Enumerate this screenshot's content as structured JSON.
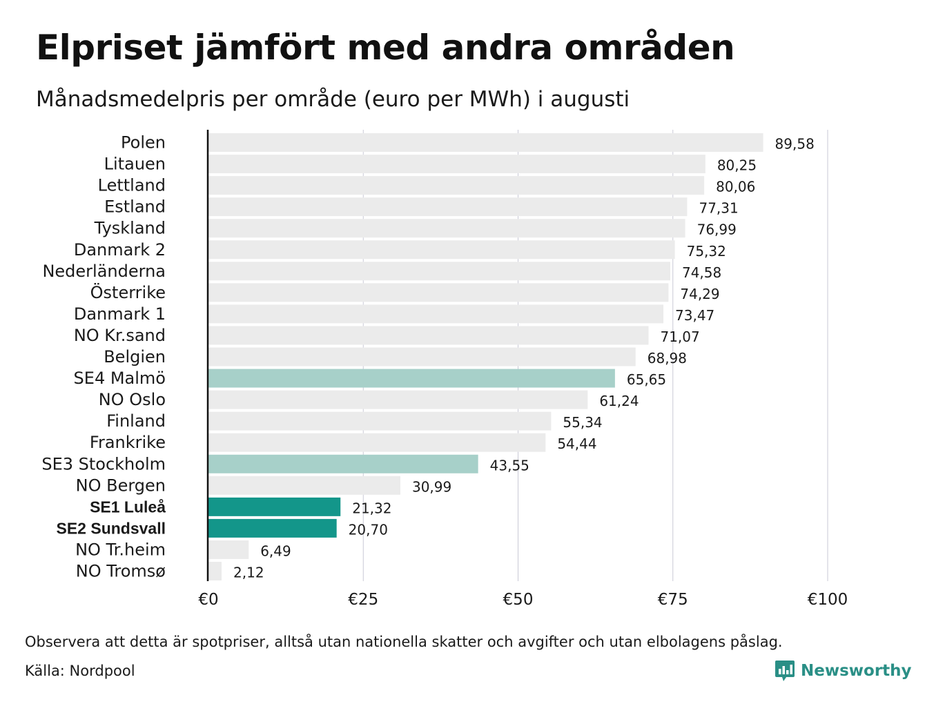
{
  "title": "Elpriset jämfört med andra områden",
  "subtitle": "Månadsmedelpris per område (euro per MWh) i augusti",
  "footer": {
    "note": "Observera att detta är spotpriser, alltså utan nationella skatter och avgifter och utan elbolagens påslag.",
    "source": "Källa: Nordpool"
  },
  "brand": {
    "name": "Newsworthy",
    "icon": "newsworthy-logo-icon",
    "color": "#2a8f86"
  },
  "chart_data": {
    "type": "bar",
    "orientation": "horizontal",
    "xlim": [
      0,
      100
    ],
    "x_ticks": [
      0,
      25,
      50,
      75,
      100
    ],
    "x_tick_labels": [
      "€0",
      "€25",
      "€50",
      "€75",
      "€100"
    ],
    "grid": true,
    "colors": {
      "default": "#ebebeb",
      "highlight_light": "#a7d0c9",
      "highlight_dark": "#13968a"
    },
    "categories": [
      "Polen",
      "Litauen",
      "Lettland",
      "Estland",
      "Tyskland",
      "Danmark  2",
      "Nederländerna",
      "Österrike",
      "Danmark  1",
      "NO Kr.sand",
      "Belgien",
      "SE4  Malmö",
      "NO Oslo",
      "Finland",
      "Frankrike",
      "SE3  Stockholm",
      "NO Bergen",
      "SE1 Luleå",
      "SE2 Sundsvall",
      "NO Tr.heim",
      "NO Tromsø"
    ],
    "values": [
      89.58,
      80.25,
      80.06,
      77.31,
      76.99,
      75.32,
      74.58,
      74.29,
      73.47,
      71.07,
      68.98,
      65.65,
      61.24,
      55.34,
      54.44,
      43.55,
      30.99,
      21.32,
      20.7,
      6.49,
      2.12
    ],
    "value_labels": [
      "89,58",
      "80,25",
      "80,06",
      "77,31",
      "76,99",
      "75,32",
      "74,58",
      "74,29",
      "73,47",
      "71,07",
      "68,98",
      "65,65",
      "61,24",
      "55,34",
      "54,44",
      "43,55",
      "30,99",
      "21,32",
      "20,70",
      "6,49",
      "2,12"
    ],
    "highlight": [
      "none",
      "none",
      "none",
      "none",
      "none",
      "none",
      "none",
      "none",
      "none",
      "none",
      "none",
      "light",
      "none",
      "none",
      "none",
      "light",
      "none",
      "dark",
      "dark",
      "none",
      "none"
    ],
    "bold_labels": [
      "SE1 Luleå",
      "SE2 Sundsvall"
    ]
  }
}
